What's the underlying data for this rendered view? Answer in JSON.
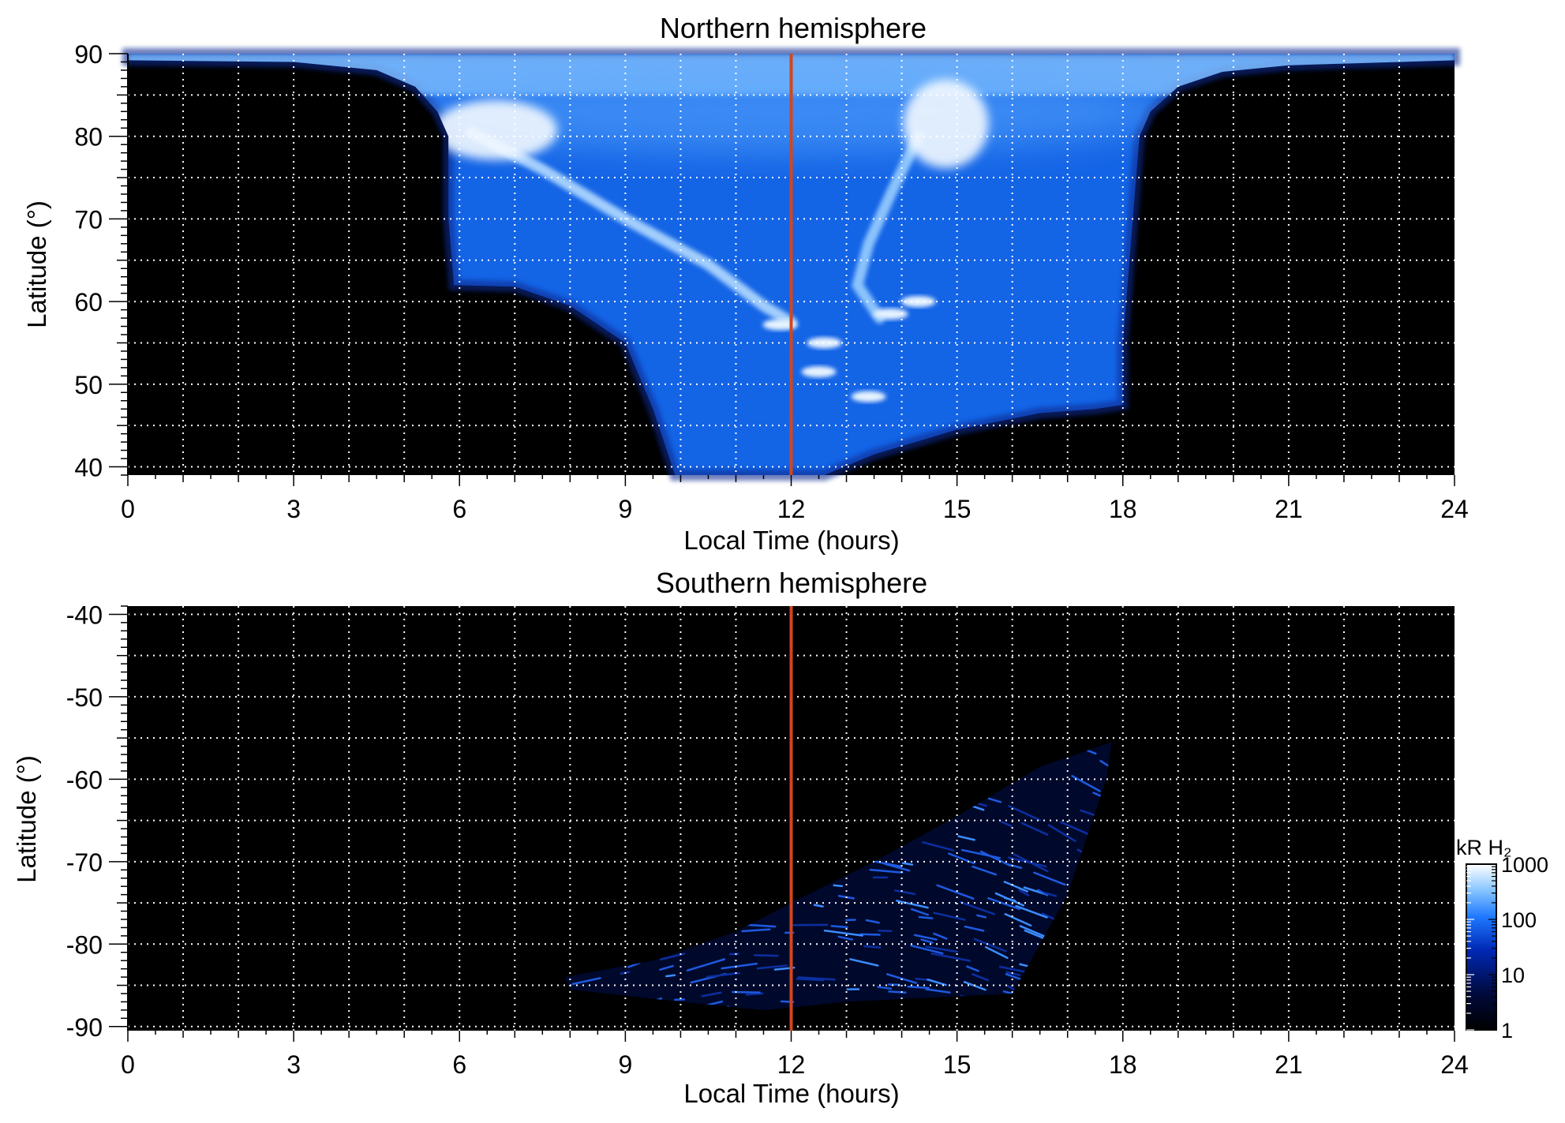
{
  "figure": {
    "colorbar": {
      "label": "kR H₂",
      "ticks": [
        1,
        10,
        100,
        1000
      ],
      "scale": "log",
      "colors": [
        "#000000",
        "#000a3c",
        "#0028b4",
        "#1e78ff",
        "#8cc8ff",
        "#ffffff"
      ]
    },
    "noon_line_color": "#d2461e",
    "grid_color": "#ffffff",
    "background_color": "#000000"
  },
  "chart_data": [
    {
      "type": "heatmap",
      "title": "Northern hemisphere",
      "xlabel": "Local Time (hours)",
      "ylabel": "Latitude (°)",
      "xlim": [
        0,
        24
      ],
      "ylim": [
        39,
        90
      ],
      "xticks": [
        0,
        3,
        6,
        9,
        12,
        15,
        18,
        21,
        24
      ],
      "yticks": [
        40,
        50,
        60,
        70,
        80,
        90
      ],
      "grid": true,
      "grid_x_step": 1,
      "grid_y_step": 5,
      "reference_line": {
        "x": 12
      },
      "coverage_boundary": [
        [
          0,
          89.2
        ],
        [
          3,
          89.0
        ],
        [
          4.5,
          88.0
        ],
        [
          5.2,
          86.0
        ],
        [
          5.6,
          83.0
        ],
        [
          5.8,
          80.0
        ],
        [
          5.8,
          70.0
        ],
        [
          5.9,
          62.0
        ],
        [
          7.0,
          61.8
        ],
        [
          8.0,
          59.5
        ],
        [
          9.0,
          55.0
        ],
        [
          9.5,
          47.0
        ],
        [
          9.9,
          39.0
        ],
        [
          12.6,
          39.0
        ],
        [
          13.5,
          41.5
        ],
        [
          15.0,
          44.5
        ],
        [
          16.5,
          46.5
        ],
        [
          17.5,
          47.0
        ],
        [
          18.0,
          47.5
        ],
        [
          18.0,
          55.0
        ],
        [
          18.3,
          80.0
        ],
        [
          18.5,
          83.0
        ],
        [
          19.0,
          86.0
        ],
        [
          19.8,
          87.8
        ],
        [
          21.0,
          88.6
        ],
        [
          24.0,
          89.2
        ],
        [
          24.0,
          90.0
        ],
        [
          0,
          90.0
        ]
      ],
      "emission_features": [
        {
          "name": "dawn arc",
          "points": [
            [
              6.2,
              80.5
            ],
            [
              7.5,
              76.0
            ],
            [
              9.0,
              70.0
            ],
            [
              10.5,
              64.5
            ],
            [
              11.5,
              59.5
            ],
            [
              12.0,
              57.5
            ]
          ],
          "kR": 500
        },
        {
          "name": "dawn bright patch",
          "points": [
            [
              6.1,
              80.0
            ],
            [
              7.2,
              81.5
            ]
          ],
          "kR": 900
        },
        {
          "name": "afternoon arc",
          "points": [
            [
              14.3,
              80.0
            ],
            [
              13.8,
              73.0
            ],
            [
              13.4,
              67.0
            ],
            [
              13.2,
              62.0
            ],
            [
              13.6,
              58.0
            ]
          ],
          "kR": 400
        },
        {
          "name": "afternoon bright patch",
          "points": [
            [
              14.6,
              79.0
            ],
            [
              15.0,
              84.0
            ]
          ],
          "kR": 900
        },
        {
          "name": "noon spots",
          "points": [
            [
              11.8,
              57.2
            ],
            [
              12.6,
              55.0
            ],
            [
              12.5,
              51.5
            ],
            [
              13.4,
              48.5
            ],
            [
              13.8,
              58.5
            ],
            [
              14.3,
              60.0
            ]
          ],
          "kR": 800
        }
      ]
    },
    {
      "type": "heatmap",
      "title": "Southern hemisphere",
      "xlabel": "Local Time (hours)",
      "ylabel": "Latitude (°)",
      "xlim": [
        0,
        24
      ],
      "ylim": [
        -90.5,
        -39
      ],
      "xticks": [
        0,
        3,
        6,
        9,
        12,
        15,
        18,
        21,
        24
      ],
      "yticks": [
        -40,
        -50,
        -60,
        -70,
        -80,
        -90
      ],
      "grid": true,
      "grid_x_step": 1,
      "grid_y_step": 5,
      "reference_line": {
        "x": 12
      },
      "coverage_boundary": [
        [
          7.9,
          -84.0
        ],
        [
          9.5,
          -82.0
        ],
        [
          11.0,
          -78.5
        ],
        [
          12.0,
          -75.0
        ],
        [
          13.5,
          -70.0
        ],
        [
          15.0,
          -64.5
        ],
        [
          16.5,
          -58.5
        ],
        [
          17.8,
          -55.5
        ],
        [
          17.7,
          -60.0
        ],
        [
          17.4,
          -66.0
        ],
        [
          17.0,
          -74.0
        ],
        [
          16.0,
          -86.0
        ],
        [
          13.0,
          -87.0
        ],
        [
          11.5,
          -88.0
        ],
        [
          10.0,
          -87.0
        ],
        [
          8.0,
          -85.5
        ]
      ],
      "emission_features": [
        {
          "name": "sparse streaks",
          "points": [
            [
              8.0,
              -84.0
            ],
            [
              12.0,
              -75.0
            ],
            [
              17.8,
              -55.5
            ],
            [
              17.0,
              -74.0
            ],
            [
              16.0,
              -86.0
            ],
            [
              11.5,
              -88.0
            ]
          ],
          "kR": 60
        }
      ]
    }
  ]
}
